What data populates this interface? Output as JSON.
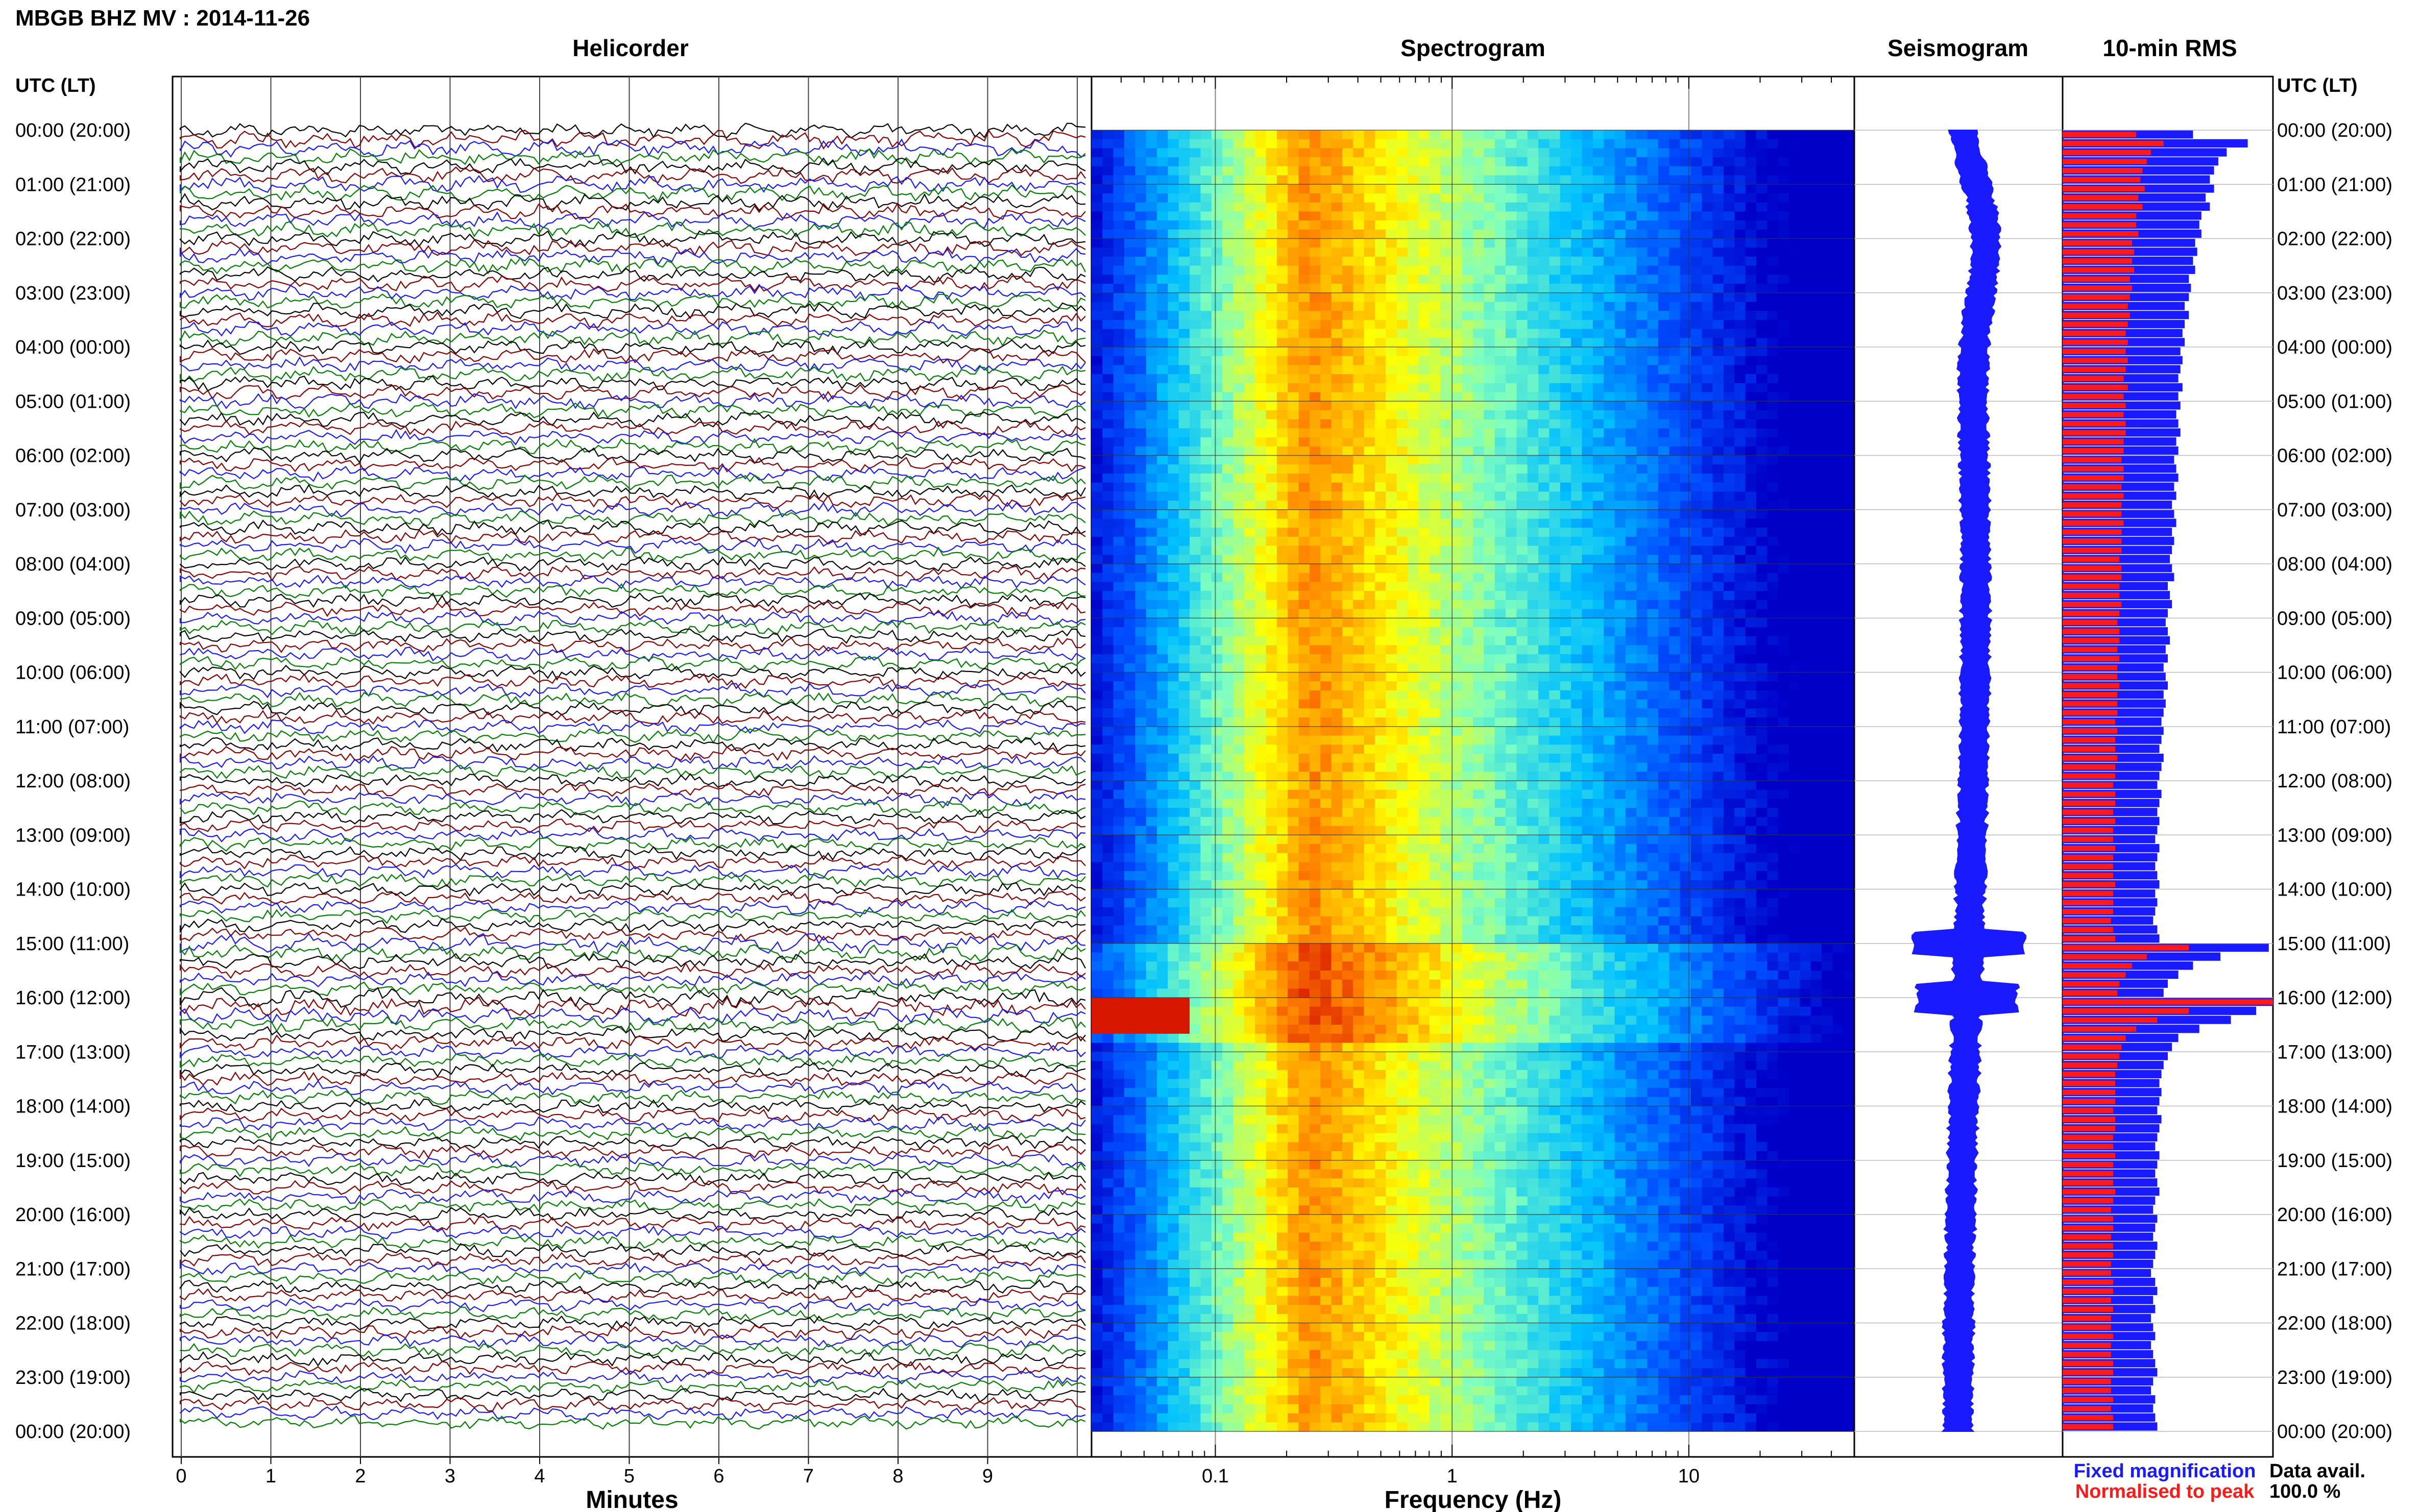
{
  "header": {
    "title": "MBGB BHZ MV : 2014-11-26",
    "utc_lt_label": "UTC (LT)"
  },
  "panels": {
    "helicorder": "Helicorder",
    "spectrogram": "Spectrogram",
    "seismogram": "Seismogram",
    "rms": "10-min RMS"
  },
  "axes": {
    "helicorder_xlabel": "Minutes",
    "spectrogram_xlabel": "Frequency (Hz)"
  },
  "legend": {
    "fixed": "Fixed magnification",
    "normalised": "Normalised to peak",
    "fixed_color": "#1a1aff",
    "normalised_color": "#ff1a1a"
  },
  "data_availability": {
    "label": "Data avail.",
    "value": "100.0 %"
  },
  "colors": {
    "trace_cycle": [
      "#000000",
      "#8b0000",
      "#1a1aff",
      "#008000"
    ],
    "spectrogram_cmap": [
      "#0000c8",
      "#0050ff",
      "#00bfff",
      "#7fffbf",
      "#ffff00",
      "#ff8000",
      "#d00000"
    ],
    "rms_fixed": "#1a1aff",
    "rms_normalised": "#ff1a1a"
  },
  "chart_data": {
    "type": "heatmap",
    "time_labels": [
      "00:00 (20:00)",
      "01:00 (21:00)",
      "02:00 (22:00)",
      "03:00 (23:00)",
      "04:00 (00:00)",
      "05:00 (01:00)",
      "06:00 (02:00)",
      "07:00 (03:00)",
      "08:00 (04:00)",
      "09:00 (05:00)",
      "10:00 (06:00)",
      "11:00 (07:00)",
      "12:00 (08:00)",
      "13:00 (09:00)",
      "14:00 (10:00)",
      "15:00 (11:00)",
      "16:00 (12:00)",
      "17:00 (13:00)",
      "18:00 (14:00)",
      "19:00 (15:00)",
      "20:00 (16:00)",
      "21:00 (17:00)",
      "22:00 (18:00)",
      "23:00 (19:00)",
      "00:00 (20:00)"
    ],
    "minutes_ticks": [
      "0",
      "1",
      "2",
      "3",
      "4",
      "5",
      "6",
      "7",
      "8",
      "9"
    ],
    "minutes_range": [
      0,
      10
    ],
    "frequency_ticks": [
      "0.1",
      "1",
      "10"
    ],
    "frequency_range_hz": [
      0.03,
      50
    ],
    "frequency_scale": "log",
    "spectral_peak_hz": 0.25,
    "rms_10min": {
      "fixed": [
        0.62,
        0.88,
        0.78,
        0.74,
        0.72,
        0.7,
        0.72,
        0.68,
        0.7,
        0.66,
        0.65,
        0.66,
        0.63,
        0.64,
        0.62,
        0.63,
        0.6,
        0.61,
        0.6,
        0.58,
        0.6,
        0.58,
        0.57,
        0.58,
        0.56,
        0.57,
        0.56,
        0.55,
        0.57,
        0.55,
        0.56,
        0.54,
        0.55,
        0.56,
        0.54,
        0.55,
        0.53,
        0.54,
        0.55,
        0.53,
        0.54,
        0.52,
        0.53,
        0.54,
        0.52,
        0.53,
        0.52,
        0.51,
        0.52,
        0.53,
        0.5,
        0.51,
        0.52,
        0.5,
        0.49,
        0.5,
        0.51,
        0.49,
        0.5,
        0.48,
        0.49,
        0.5,
        0.48,
        0.49,
        0.48,
        0.47,
        0.48,
        0.47,
        0.46,
        0.48,
        0.47,
        0.46,
        0.45,
        0.47,
        0.46,
        0.45,
        0.46,
        0.45,
        0.44,
        0.46,
        0.45,
        0.44,
        0.45,
        0.46,
        0.44,
        0.45,
        0.44,
        0.43,
        0.45,
        0.46,
        0.98,
        0.75,
        0.62,
        0.55,
        0.5,
        0.48,
        1.0,
        0.92,
        0.8,
        0.65,
        0.55,
        0.52,
        0.5,
        0.48,
        0.47,
        0.46,
        0.47,
        0.46,
        0.45,
        0.47,
        0.46,
        0.45,
        0.44,
        0.46,
        0.45,
        0.44,
        0.45,
        0.46,
        0.44,
        0.43,
        0.45,
        0.44,
        0.43,
        0.45,
        0.44,
        0.43,
        0.42,
        0.44,
        0.45,
        0.43,
        0.44,
        0.42,
        0.43,
        0.44,
        0.42,
        0.43,
        0.44,
        0.45,
        0.43,
        0.42,
        0.44,
        0.43,
        0.44,
        0.45
      ],
      "normalised": [
        0.35,
        0.48,
        0.42,
        0.4,
        0.38,
        0.37,
        0.39,
        0.36,
        0.38,
        0.35,
        0.35,
        0.36,
        0.33,
        0.34,
        0.33,
        0.34,
        0.32,
        0.33,
        0.32,
        0.31,
        0.32,
        0.31,
        0.3,
        0.31,
        0.3,
        0.31,
        0.3,
        0.29,
        0.31,
        0.29,
        0.3,
        0.29,
        0.3,
        0.3,
        0.29,
        0.29,
        0.28,
        0.29,
        0.29,
        0.28,
        0.29,
        0.28,
        0.28,
        0.29,
        0.28,
        0.28,
        0.28,
        0.27,
        0.28,
        0.28,
        0.27,
        0.27,
        0.28,
        0.27,
        0.26,
        0.27,
        0.27,
        0.26,
        0.27,
        0.26,
        0.26,
        0.27,
        0.26,
        0.26,
        0.26,
        0.25,
        0.26,
        0.25,
        0.25,
        0.26,
        0.25,
        0.25,
        0.24,
        0.25,
        0.25,
        0.24,
        0.25,
        0.24,
        0.24,
        0.25,
        0.24,
        0.24,
        0.24,
        0.25,
        0.24,
        0.24,
        0.24,
        0.23,
        0.24,
        0.25,
        0.6,
        0.4,
        0.33,
        0.3,
        0.27,
        0.26,
        1.0,
        0.6,
        0.45,
        0.35,
        0.3,
        0.28,
        0.27,
        0.26,
        0.25,
        0.25,
        0.25,
        0.25,
        0.24,
        0.25,
        0.25,
        0.24,
        0.24,
        0.25,
        0.24,
        0.24,
        0.24,
        0.25,
        0.24,
        0.23,
        0.24,
        0.24,
        0.23,
        0.24,
        0.24,
        0.23,
        0.23,
        0.24,
        0.24,
        0.23,
        0.24,
        0.23,
        0.23,
        0.24,
        0.23,
        0.23,
        0.24,
        0.24,
        0.23,
        0.23,
        0.24,
        0.23,
        0.24,
        0.24
      ]
    }
  }
}
